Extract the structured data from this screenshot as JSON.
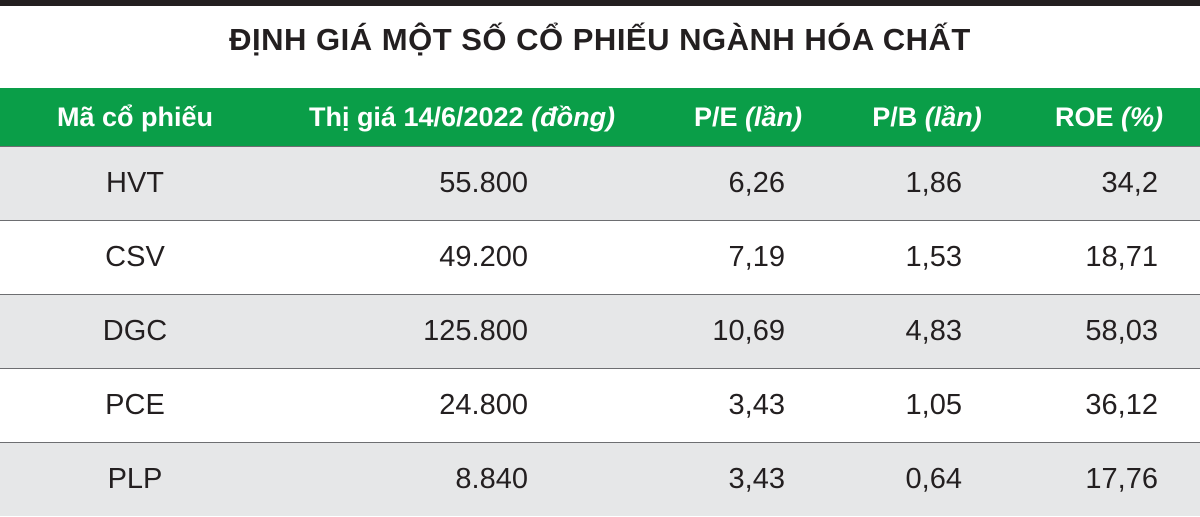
{
  "title": "ĐỊNH GIÁ MỘT SỐ CỔ PHIẾU NGÀNH HÓA CHẤT",
  "table": {
    "header": [
      {
        "text": "Mã cổ phiếu"
      },
      {
        "text": "Thị giá 14/6/2022",
        "unit": "(đồng)"
      },
      {
        "text": "P/E",
        "unit": "(lần)"
      },
      {
        "text": "P/B",
        "unit": "(lần)"
      },
      {
        "text": "ROE",
        "unit": "(%)"
      }
    ],
    "rows": [
      [
        "HVT",
        "55.800",
        "6,26",
        "1,86",
        "34,2"
      ],
      [
        "CSV",
        "49.200",
        "7,19",
        "1,53",
        "18,71"
      ],
      [
        "DGC",
        "125.800",
        "10,69",
        "4,83",
        "58,03"
      ],
      [
        "PCE",
        "24.800",
        "3,43",
        "1,05",
        "36,12"
      ],
      [
        "PLP",
        "8.840",
        "3,43",
        "0,64",
        "17,76"
      ]
    ]
  }
}
